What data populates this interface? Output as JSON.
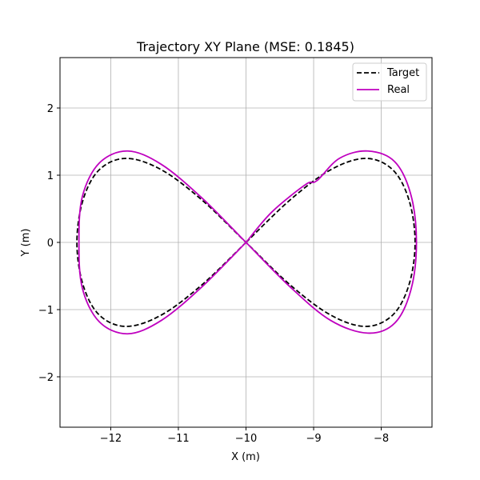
{
  "chart_data": {
    "type": "line",
    "title": "Trajectory XY Plane (MSE: 0.1845)",
    "xlabel": "X (m)",
    "ylabel": "Y (m)",
    "xlim": [
      -12.75,
      -7.25
    ],
    "ylim": [
      -2.75,
      2.75
    ],
    "grid": true,
    "legend_position": "upper right",
    "xticks": [
      -12,
      -11,
      -10,
      -9,
      -8
    ],
    "xtick_labels": [
      "−12",
      "−11",
      "−10",
      "−9",
      "−8"
    ],
    "yticks": [
      -2,
      -1,
      0,
      1,
      2
    ],
    "ytick_labels": [
      "−2",
      "−1",
      "0",
      "1",
      "2"
    ],
    "series": [
      {
        "name": "Target",
        "color": "#000000",
        "style": "dashed",
        "x": [
          -10.0,
          -9.35,
          -8.75,
          -8.23,
          -7.83,
          -7.59,
          -7.5,
          -7.59,
          -7.83,
          -8.23,
          -8.75,
          -9.35,
          -10.0,
          -10.65,
          -11.25,
          -11.77,
          -12.17,
          -12.41,
          -12.5,
          -12.41,
          -12.17,
          -11.77,
          -11.25,
          -10.65,
          -10.0
        ],
        "y": [
          0.0,
          0.63,
          1.08,
          1.25,
          1.08,
          0.63,
          0.0,
          -0.63,
          -1.08,
          -1.25,
          -1.08,
          -0.63,
          0.0,
          0.63,
          1.08,
          1.25,
          1.08,
          0.63,
          0.0,
          -0.63,
          -1.08,
          -1.25,
          -1.08,
          -0.63,
          0.0
        ]
      },
      {
        "name": "Real",
        "color": "#bf00bf",
        "style": "solid",
        "x": [
          -10.0,
          -9.62,
          -9.12,
          -8.95,
          -8.62,
          -8.2,
          -7.8,
          -7.56,
          -7.48,
          -7.56,
          -7.8,
          -8.2,
          -8.75,
          -9.35,
          -10.0,
          -10.65,
          -11.25,
          -11.75,
          -12.17,
          -12.42,
          -12.47,
          -12.42,
          -12.17,
          -11.75,
          -11.25,
          -10.65,
          -10.0
        ],
        "y": [
          0.0,
          0.45,
          0.86,
          0.92,
          1.25,
          1.36,
          1.2,
          0.7,
          0.0,
          -0.7,
          -1.2,
          -1.35,
          -1.16,
          -0.66,
          0.0,
          0.66,
          1.16,
          1.36,
          1.18,
          0.68,
          0.0,
          -0.68,
          -1.18,
          -1.36,
          -1.16,
          -0.66,
          0.0
        ]
      }
    ]
  }
}
